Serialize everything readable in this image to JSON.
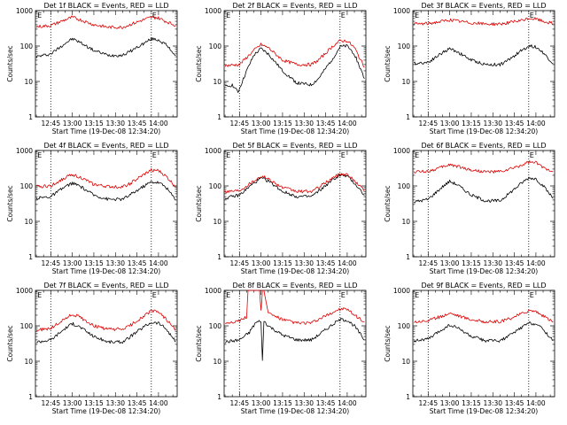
{
  "figure": {
    "axis_color": "#000000",
    "events_color": "#000000",
    "lld_color": "#dd0000",
    "marker_color": "#000000"
  },
  "chart_data": [
    {
      "type": "line",
      "title": "Det 1f BLACK = Events, RED = LLD",
      "ylabel": "Counts/sec",
      "xlabel": "Start Time (19-Dec-08 12:34:20)",
      "ylim": [
        1,
        1000
      ],
      "yscale": "log",
      "yticks": [
        "1",
        "10",
        "100",
        "1000"
      ],
      "xlim": [
        "12:34:20",
        "14:13:00"
      ],
      "xticks": [
        "12:45",
        "13:00",
        "13:15",
        "13:30",
        "13:45",
        "14:00"
      ],
      "vlines": [
        "12:45",
        "13:55"
      ],
      "markers": [
        {
          "label": "E",
          "x": "12:35"
        },
        {
          "label": "E",
          "x": "13:55"
        }
      ],
      "series": [
        {
          "name": "Events",
          "color": "#000000",
          "x": [
            "12:35",
            "12:45",
            "12:55",
            "13:00",
            "13:05",
            "13:15",
            "13:25",
            "13:35",
            "13:40",
            "13:50",
            "13:55",
            "14:00",
            "14:05",
            "14:12"
          ],
          "values": [
            50,
            60,
            120,
            160,
            130,
            75,
            55,
            55,
            70,
            120,
            160,
            150,
            110,
            55
          ]
        },
        {
          "name": "LLD",
          "color": "#dd0000",
          "x": [
            "12:35",
            "12:45",
            "12:55",
            "13:00",
            "13:05",
            "13:15",
            "13:25",
            "13:35",
            "13:40",
            "13:50",
            "13:55",
            "14:00",
            "14:05",
            "14:12"
          ],
          "values": [
            350,
            380,
            550,
            650,
            560,
            400,
            340,
            340,
            400,
            560,
            650,
            620,
            500,
            380
          ]
        }
      ]
    },
    {
      "type": "line",
      "title": "Det 2f BLACK = Events, RED = LLD",
      "ylabel": "Counts/sec",
      "xlabel": "Start Time (19-Dec-08 12:34:20)",
      "ylim": [
        1,
        1000
      ],
      "yscale": "log",
      "yticks": [
        "1",
        "10",
        "100",
        "1000"
      ],
      "xlim": [
        "12:34:20",
        "14:13:00"
      ],
      "xticks": [
        "12:45",
        "13:00",
        "13:15",
        "13:30",
        "13:45",
        "14:00"
      ],
      "vlines": [
        "12:45",
        "13:55"
      ],
      "markers": [
        {
          "label": "E",
          "x": "12:35"
        },
        {
          "label": "E",
          "x": "13:55"
        }
      ],
      "series": [
        {
          "name": "Events",
          "color": "#000000",
          "x": [
            "12:35",
            "12:40",
            "12:44",
            "12:50",
            "12:55",
            "13:00",
            "13:05",
            "13:15",
            "13:25",
            "13:35",
            "13:40",
            "13:50",
            "13:55",
            "14:00",
            "14:05",
            "14:12"
          ],
          "values": [
            7,
            8,
            5,
            20,
            55,
            85,
            60,
            20,
            9,
            8,
            12,
            45,
            95,
            100,
            60,
            12
          ]
        },
        {
          "name": "LLD",
          "color": "#dd0000",
          "x": [
            "12:35",
            "12:45",
            "12:55",
            "13:00",
            "13:05",
            "13:15",
            "13:25",
            "13:35",
            "13:40",
            "13:50",
            "13:55",
            "14:00",
            "14:05",
            "14:12"
          ],
          "values": [
            28,
            30,
            75,
            110,
            90,
            40,
            30,
            30,
            40,
            100,
            140,
            140,
            90,
            25
          ]
        }
      ]
    },
    {
      "type": "line",
      "title": "Det 3f BLACK = Events, RED = LLD",
      "ylabel": "Counts/sec",
      "xlabel": "Start Time (19-Dec-08 12:34:20)",
      "ylim": [
        1,
        1000
      ],
      "yscale": "log",
      "yticks": [
        "1",
        "10",
        "100",
        "1000"
      ],
      "xlim": [
        "12:34:20",
        "14:13:00"
      ],
      "xticks": [
        "12:45",
        "13:00",
        "13:15",
        "13:30",
        "13:45",
        "14:00"
      ],
      "vlines": [
        "12:45",
        "13:55"
      ],
      "markers": [
        {
          "label": "E",
          "x": "12:35"
        },
        {
          "label": "E",
          "x": "13:55"
        }
      ],
      "series": [
        {
          "name": "Events",
          "color": "#000000",
          "x": [
            "12:35",
            "12:45",
            "12:55",
            "13:00",
            "13:05",
            "13:15",
            "13:25",
            "13:35",
            "13:40",
            "13:50",
            "13:55",
            "14:00",
            "14:05",
            "14:12"
          ],
          "values": [
            32,
            35,
            65,
            85,
            70,
            40,
            30,
            30,
            38,
            75,
            100,
            95,
            65,
            32
          ]
        },
        {
          "name": "LLD",
          "color": "#dd0000",
          "x": [
            "12:35",
            "12:45",
            "12:55",
            "13:00",
            "13:05",
            "13:15",
            "13:25",
            "13:35",
            "13:40",
            "13:50",
            "13:55",
            "14:00",
            "14:05",
            "14:12"
          ],
          "values": [
            420,
            430,
            500,
            550,
            510,
            450,
            420,
            420,
            450,
            520,
            600,
            580,
            500,
            430
          ]
        }
      ]
    },
    {
      "type": "line",
      "title": "Det 4f BLACK = Events, RED = LLD",
      "ylabel": "Counts/sec",
      "xlabel": "Start Time (19-Dec-08 12:34:20)",
      "ylim": [
        1,
        1000
      ],
      "yscale": "log",
      "yticks": [
        "1",
        "10",
        "100",
        "1000"
      ],
      "xlim": [
        "12:34:20",
        "14:13:00"
      ],
      "xticks": [
        "12:45",
        "13:00",
        "13:15",
        "13:30",
        "13:45",
        "14:00"
      ],
      "vlines": [
        "12:45",
        "13:55"
      ],
      "markers": [
        {
          "label": "E",
          "x": "12:35"
        },
        {
          "label": "E",
          "x": "13:55"
        }
      ],
      "series": [
        {
          "name": "Events",
          "color": "#000000",
          "x": [
            "12:35",
            "12:45",
            "12:55",
            "13:00",
            "13:05",
            "13:15",
            "13:25",
            "13:35",
            "13:40",
            "13:50",
            "13:55",
            "14:00",
            "14:05",
            "14:12"
          ],
          "values": [
            45,
            50,
            95,
            120,
            100,
            55,
            42,
            42,
            55,
            100,
            130,
            125,
            95,
            40
          ]
        },
        {
          "name": "LLD",
          "color": "#dd0000",
          "x": [
            "12:35",
            "12:45",
            "12:55",
            "13:00",
            "13:05",
            "13:15",
            "13:25",
            "13:35",
            "13:40",
            "13:50",
            "13:55",
            "14:00",
            "14:05",
            "14:12"
          ],
          "values": [
            95,
            100,
            170,
            210,
            180,
            110,
            95,
            95,
            115,
            210,
            280,
            270,
            190,
            95
          ]
        }
      ]
    },
    {
      "type": "line",
      "title": "Det 5f BLACK = Events, RED = LLD",
      "ylabel": "Counts/sec",
      "xlabel": "Start Time (19-Dec-08 12:34:20)",
      "ylim": [
        1,
        1000
      ],
      "yscale": "log",
      "yticks": [
        "1",
        "10",
        "100",
        "1000"
      ],
      "xlim": [
        "12:34:20",
        "14:13:00"
      ],
      "xticks": [
        "12:45",
        "13:00",
        "13:15",
        "13:30",
        "13:45",
        "14:00"
      ],
      "vlines": [
        "12:45",
        "13:55"
      ],
      "markers": [
        {
          "label": "E",
          "x": "12:35"
        },
        {
          "label": "E",
          "x": "13:55"
        }
      ],
      "series": [
        {
          "name": "Events",
          "color": "#000000",
          "x": [
            "12:35",
            "12:45",
            "12:55",
            "13:00",
            "13:05",
            "13:15",
            "13:25",
            "13:35",
            "13:40",
            "13:50",
            "13:55",
            "14:00",
            "14:05",
            "14:12"
          ],
          "values": [
            45,
            55,
            120,
            165,
            140,
            70,
            50,
            50,
            70,
            150,
            200,
            190,
            120,
            55
          ]
        },
        {
          "name": "LLD",
          "color": "#dd0000",
          "x": [
            "12:35",
            "12:45",
            "12:55",
            "13:00",
            "13:05",
            "13:15",
            "13:25",
            "13:35",
            "13:40",
            "13:50",
            "13:55",
            "14:00",
            "14:05",
            "14:12"
          ],
          "values": [
            70,
            75,
            140,
            190,
            160,
            90,
            70,
            70,
            90,
            170,
            220,
            210,
            140,
            75
          ]
        }
      ]
    },
    {
      "type": "line",
      "title": "Det 6f BLACK = Events, RED = LLD",
      "ylabel": "Counts/sec",
      "xlabel": "Start Time (19-Dec-08 12:34:20)",
      "ylim": [
        1,
        1000
      ],
      "yscale": "log",
      "yticks": [
        "1",
        "10",
        "100",
        "1000"
      ],
      "xlim": [
        "12:34:20",
        "14:13:00"
      ],
      "xticks": [
        "12:45",
        "13:00",
        "13:15",
        "13:30",
        "13:45",
        "14:00"
      ],
      "vlines": [
        "12:45",
        "13:55"
      ],
      "markers": [
        {
          "label": "E",
          "x": "12:35"
        },
        {
          "label": "E",
          "x": "13:55"
        }
      ],
      "series": [
        {
          "name": "Events",
          "color": "#000000",
          "x": [
            "12:35",
            "12:45",
            "12:55",
            "13:00",
            "13:05",
            "13:15",
            "13:25",
            "13:35",
            "13:40",
            "13:50",
            "13:55",
            "14:00",
            "14:05",
            "14:12"
          ],
          "values": [
            35,
            42,
            95,
            135,
            110,
            55,
            38,
            38,
            55,
            120,
            170,
            160,
            100,
            45
          ]
        },
        {
          "name": "LLD",
          "color": "#dd0000",
          "x": [
            "12:35",
            "12:45",
            "12:55",
            "13:00",
            "13:05",
            "13:15",
            "13:25",
            "13:35",
            "13:40",
            "13:50",
            "13:55",
            "14:00",
            "14:05",
            "14:12"
          ],
          "values": [
            250,
            260,
            340,
            400,
            360,
            280,
            250,
            250,
            280,
            380,
            470,
            450,
            330,
            260
          ]
        }
      ]
    },
    {
      "type": "line",
      "title": "Det 7f BLACK = Events, RED = LLD",
      "ylabel": "Counts/sec",
      "xlabel": "Start Time (19-Dec-08 12:34:20)",
      "ylim": [
        1,
        1000
      ],
      "yscale": "log",
      "yticks": [
        "1",
        "10",
        "100",
        "1000"
      ],
      "xlim": [
        "12:34:20",
        "14:13:00"
      ],
      "xticks": [
        "12:45",
        "13:00",
        "13:15",
        "13:30",
        "13:45",
        "14:00"
      ],
      "vlines": [
        "12:45",
        "13:55"
      ],
      "markers": [
        {
          "label": "E",
          "x": "12:35"
        },
        {
          "label": "E",
          "x": "13:55"
        }
      ],
      "series": [
        {
          "name": "Events",
          "color": "#000000",
          "x": [
            "12:35",
            "12:45",
            "12:55",
            "13:00",
            "13:05",
            "13:15",
            "13:25",
            "13:35",
            "13:40",
            "13:50",
            "13:55",
            "14:00",
            "14:05",
            "14:12"
          ],
          "values": [
            35,
            40,
            85,
            115,
            95,
            50,
            35,
            35,
            48,
            95,
            125,
            120,
            85,
            35
          ]
        },
        {
          "name": "LLD",
          "color": "#dd0000",
          "x": [
            "12:35",
            "12:45",
            "12:55",
            "13:00",
            "13:05",
            "13:15",
            "13:25",
            "13:35",
            "13:40",
            "13:50",
            "13:55",
            "14:00",
            "14:05",
            "14:12"
          ],
          "values": [
            75,
            85,
            160,
            210,
            180,
            100,
            80,
            80,
            100,
            190,
            260,
            250,
            160,
            75
          ]
        }
      ]
    },
    {
      "type": "line",
      "title": "Det 8f BLACK = Events, RED = LLD",
      "ylabel": "Counts/sec",
      "xlabel": "Start Time (19-Dec-08 12:34:20)",
      "ylim": [
        1,
        1000
      ],
      "yscale": "log",
      "yticks": [
        "1",
        "10",
        "100",
        "1000"
      ],
      "xlim": [
        "12:34:20",
        "14:13:00"
      ],
      "xticks": [
        "12:45",
        "13:00",
        "13:15",
        "13:30",
        "13:45",
        "14:00"
      ],
      "vlines": [
        "12:45",
        "13:55"
      ],
      "markers": [
        {
          "label": "E",
          "x": "12:35"
        },
        {
          "label": "E",
          "x": "13:55"
        }
      ],
      "series": [
        {
          "name": "Events",
          "color": "#000000",
          "x": [
            "12:35",
            "12:45",
            "12:52",
            "12:53",
            "12:55",
            "12:56",
            "13:00",
            "13:01",
            "13:02",
            "13:05",
            "13:15",
            "13:25",
            "13:35",
            "13:40",
            "13:50",
            "13:55",
            "14:00",
            "14:05",
            "14:12"
          ],
          "values": [
            35,
            40,
            65,
            80,
            100,
            120,
            140,
            10,
            140,
            100,
            55,
            40,
            40,
            55,
            110,
            150,
            145,
            100,
            40
          ]
        },
        {
          "name": "LLD",
          "color": "#dd0000",
          "x": [
            "12:35",
            "12:45",
            "12:50",
            "12:51",
            "12:52",
            "12:58",
            "12:59",
            "13:00",
            "13:01",
            "13:02",
            "13:05",
            "13:15",
            "13:25",
            "13:35",
            "13:40",
            "13:50",
            "13:55",
            "14:00",
            "14:05",
            "14:12"
          ],
          "values": [
            120,
            140,
            180,
            1000,
            1000,
            1000,
            1000,
            260,
            1000,
            1000,
            230,
            150,
            120,
            120,
            150,
            240,
            300,
            290,
            200,
            130
          ]
        }
      ]
    },
    {
      "type": "line",
      "title": "Det 9f BLACK = Events, RED = LLD",
      "ylabel": "Counts/sec",
      "xlabel": "Start Time (19-Dec-08 12:34:20)",
      "ylim": [
        1,
        1000
      ],
      "yscale": "log",
      "yticks": [
        "1",
        "10",
        "100",
        "1000"
      ],
      "xlim": [
        "12:34:20",
        "14:13:00"
      ],
      "xticks": [
        "12:45",
        "13:00",
        "13:15",
        "13:30",
        "13:45",
        "14:00"
      ],
      "vlines": [
        "12:45",
        "13:55"
      ],
      "markers": [
        {
          "label": "E",
          "x": "12:35"
        },
        {
          "label": "E",
          "x": "13:55"
        }
      ],
      "series": [
        {
          "name": "Events",
          "color": "#000000",
          "x": [
            "12:35",
            "12:45",
            "12:55",
            "13:00",
            "13:05",
            "13:15",
            "13:25",
            "13:35",
            "13:40",
            "13:50",
            "13:55",
            "14:00",
            "14:05",
            "14:12"
          ],
          "values": [
            38,
            42,
            80,
            105,
            90,
            50,
            38,
            38,
            48,
            90,
            120,
            115,
            80,
            38
          ]
        },
        {
          "name": "LLD",
          "color": "#dd0000",
          "x": [
            "12:35",
            "12:45",
            "12:55",
            "13:00",
            "13:05",
            "13:15",
            "13:25",
            "13:35",
            "13:40",
            "13:50",
            "13:55",
            "14:00",
            "14:05",
            "14:12"
          ],
          "values": [
            130,
            140,
            190,
            230,
            200,
            150,
            130,
            130,
            150,
            220,
            270,
            260,
            190,
            130
          ]
        }
      ]
    }
  ]
}
